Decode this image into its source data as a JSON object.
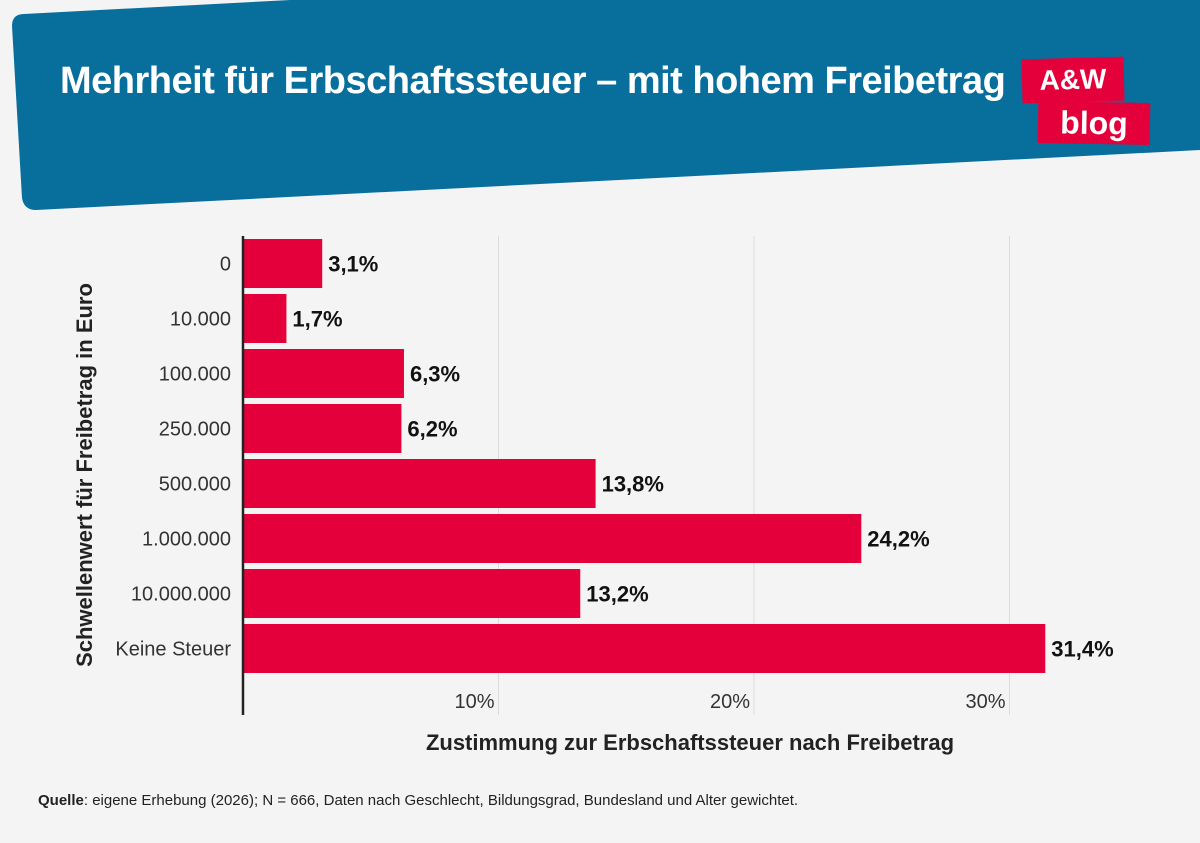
{
  "header": {
    "title": "Mehrheit für Erbschaftssteuer – mit hohem Freibetrag",
    "logo_top": "A&W",
    "logo_bottom": "blog"
  },
  "colors": {
    "banner": "#086e9c",
    "bar": "#e4003a",
    "background": "#f4f4f4",
    "grid": "#dcdcdc"
  },
  "chart_data": {
    "type": "bar",
    "orientation": "horizontal",
    "categories": [
      "0",
      "10.000",
      "100.000",
      "250.000",
      "500.000",
      "1.000.000",
      "10.000.000",
      "Keine Steuer"
    ],
    "values": [
      3.1,
      1.7,
      6.3,
      6.2,
      13.8,
      24.2,
      13.2,
      31.4
    ],
    "value_labels": [
      "3,1%",
      "1,7%",
      "6,3%",
      "6,2%",
      "13,8%",
      "24,2%",
      "13,2%",
      "31,4%"
    ],
    "xlabel": "Zustimmung zur Erbschaftssteuer nach Freibetrag",
    "ylabel": "Schwellenwert für Freibetrag in Euro",
    "xlim": [
      0,
      30
    ],
    "xticks": [
      10,
      20,
      30
    ],
    "xtick_labels": [
      "10%",
      "20%",
      "30%"
    ],
    "grid": true
  },
  "footer": {
    "source_label": "Quelle",
    "source_text": ": eigene Erhebung (2026); N = 666, Daten nach Geschlecht, Bildungsgrad, Bundesland und Alter gewichtet."
  }
}
